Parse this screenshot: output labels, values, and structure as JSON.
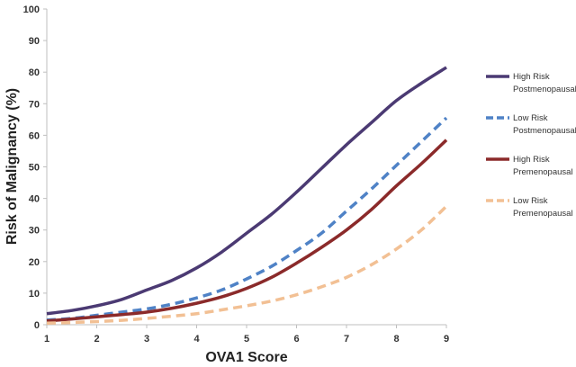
{
  "chart_data": {
    "type": "line",
    "title": "",
    "xlabel": "OVA1 Score",
    "ylabel": "Risk of Malignancy (%)",
    "xlim": [
      1,
      9
    ],
    "ylim": [
      0,
      100
    ],
    "xticks": [
      1,
      2,
      3,
      4,
      5,
      6,
      7,
      8,
      9
    ],
    "yticks": [
      0,
      10,
      20,
      30,
      40,
      50,
      60,
      70,
      80,
      90,
      100
    ],
    "x": [
      1,
      1.5,
      2,
      2.5,
      3,
      3.5,
      4,
      4.5,
      5,
      5.5,
      6,
      6.5,
      7,
      7.5,
      8,
      8.5,
      9
    ],
    "grid": false,
    "legend_position": "right",
    "series": [
      {
        "legend_lines": [
          "High Risk",
          "Postmenopausal"
        ],
        "color": "#4b3a73",
        "dashed": false,
        "values": [
          3.5,
          4.5,
          6,
          8,
          11,
          14,
          18,
          23,
          29,
          35,
          42,
          49.5,
          57,
          64,
          71,
          76.5,
          81.5
        ]
      },
      {
        "legend_lines": [
          "Low Risk",
          "Postmenopausal"
        ],
        "color": "#4f82c6",
        "dashed": true,
        "values": [
          1.5,
          2,
          3,
          4,
          5,
          6.5,
          8.5,
          11,
          14.5,
          18.5,
          23.5,
          29,
          36,
          43,
          50.5,
          58,
          65.5
        ]
      },
      {
        "legend_lines": [
          "High Risk",
          "Premenopausal"
        ],
        "color": "#8b2a2a",
        "dashed": false,
        "values": [
          1.2,
          1.8,
          2.5,
          3.2,
          4,
          5.2,
          6.8,
          8.8,
          11.5,
          15,
          19.5,
          24.5,
          30,
          36.5,
          44,
          51,
          58.5
        ]
      },
      {
        "legend_lines": [
          "Low Risk",
          "Premenopausal"
        ],
        "color": "#f2c094",
        "dashed": true,
        "values": [
          0.5,
          0.7,
          1,
          1.4,
          2,
          2.7,
          3.5,
          4.7,
          6,
          7.5,
          9.5,
          12,
          15,
          19,
          24,
          30,
          37.5
        ]
      }
    ]
  }
}
